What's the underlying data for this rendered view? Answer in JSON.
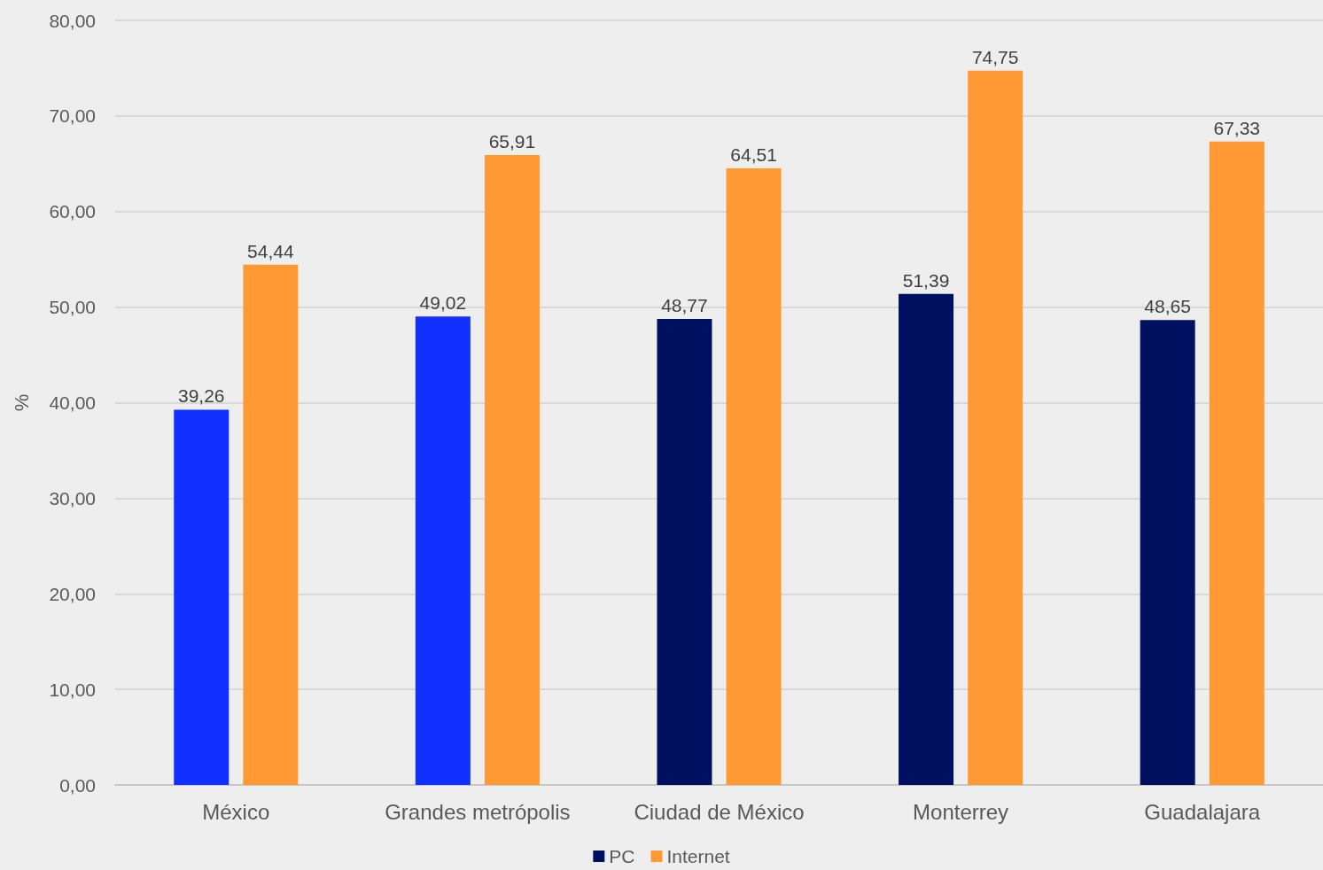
{
  "chart_data": {
    "type": "bar",
    "ylabel": "%",
    "categories": [
      "México",
      "Grandes metrópolis",
      "Ciudad de México",
      "Monterrey",
      "Guadalajara"
    ],
    "series": [
      {
        "name": "PC",
        "color": "#001060",
        "colors": [
          "#0f30ff",
          "#0f30ff",
          "#001060",
          "#001060",
          "#001060"
        ],
        "values": [
          39.26,
          49.02,
          48.77,
          51.39,
          48.65
        ],
        "value_labels": [
          "39,26",
          "49,02",
          "48,77",
          "51,39",
          "48,65"
        ]
      },
      {
        "name": "Internet",
        "color": "#ff9933",
        "values": [
          54.44,
          65.91,
          64.51,
          74.75,
          67.33
        ],
        "value_labels": [
          "54,44",
          "65,91",
          "64,51",
          "74,75",
          "67,33"
        ]
      }
    ],
    "ylim": [
      0,
      80
    ],
    "yticks": [
      {
        "value": 0,
        "label": "0,00"
      },
      {
        "value": 10,
        "label": "10,00"
      },
      {
        "value": 20,
        "label": "20,00"
      },
      {
        "value": 30,
        "label": "30,00"
      },
      {
        "value": 40,
        "label": "40,00"
      },
      {
        "value": 50,
        "label": "50,00"
      },
      {
        "value": 60,
        "label": "60,00"
      },
      {
        "value": 70,
        "label": "70,00"
      },
      {
        "value": 80,
        "label": "80,00"
      }
    ],
    "grid": "y",
    "legend": "bottom"
  }
}
